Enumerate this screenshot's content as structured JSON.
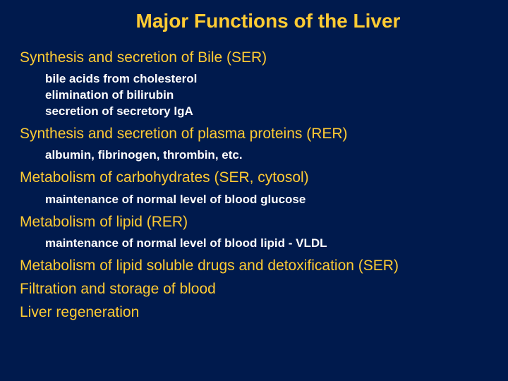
{
  "colors": {
    "background": "#001a4d",
    "heading": "#ffcc33",
    "subitem": "#ffffff"
  },
  "typography": {
    "title_fontsize": 28,
    "heading_fontsize": 21,
    "subitem_fontsize": 17,
    "font_family": "Arial"
  },
  "title": "Major Functions of the Liver",
  "sections": [
    {
      "heading": "Synthesis and secretion of Bile (SER)",
      "items": [
        "bile acids from cholesterol",
        "elimination of bilirubin",
        "secretion of secretory IgA"
      ]
    },
    {
      "heading": "Synthesis and secretion of plasma proteins (RER)",
      "items": [
        "albumin, fibrinogen, thrombin, etc."
      ]
    },
    {
      "heading": "Metabolism of carbohydrates (SER, cytosol)",
      "items": [
        "maintenance of normal level of blood glucose"
      ]
    },
    {
      "heading": "Metabolism of lipid (RER)",
      "items": [
        "maintenance of normal level of blood lipid - VLDL"
      ]
    },
    {
      "heading": "Metabolism of lipid soluble drugs and detoxification (SER)",
      "items": []
    },
    {
      "heading": "Filtration and storage of blood",
      "items": []
    },
    {
      "heading": "Liver regeneration",
      "items": []
    }
  ]
}
